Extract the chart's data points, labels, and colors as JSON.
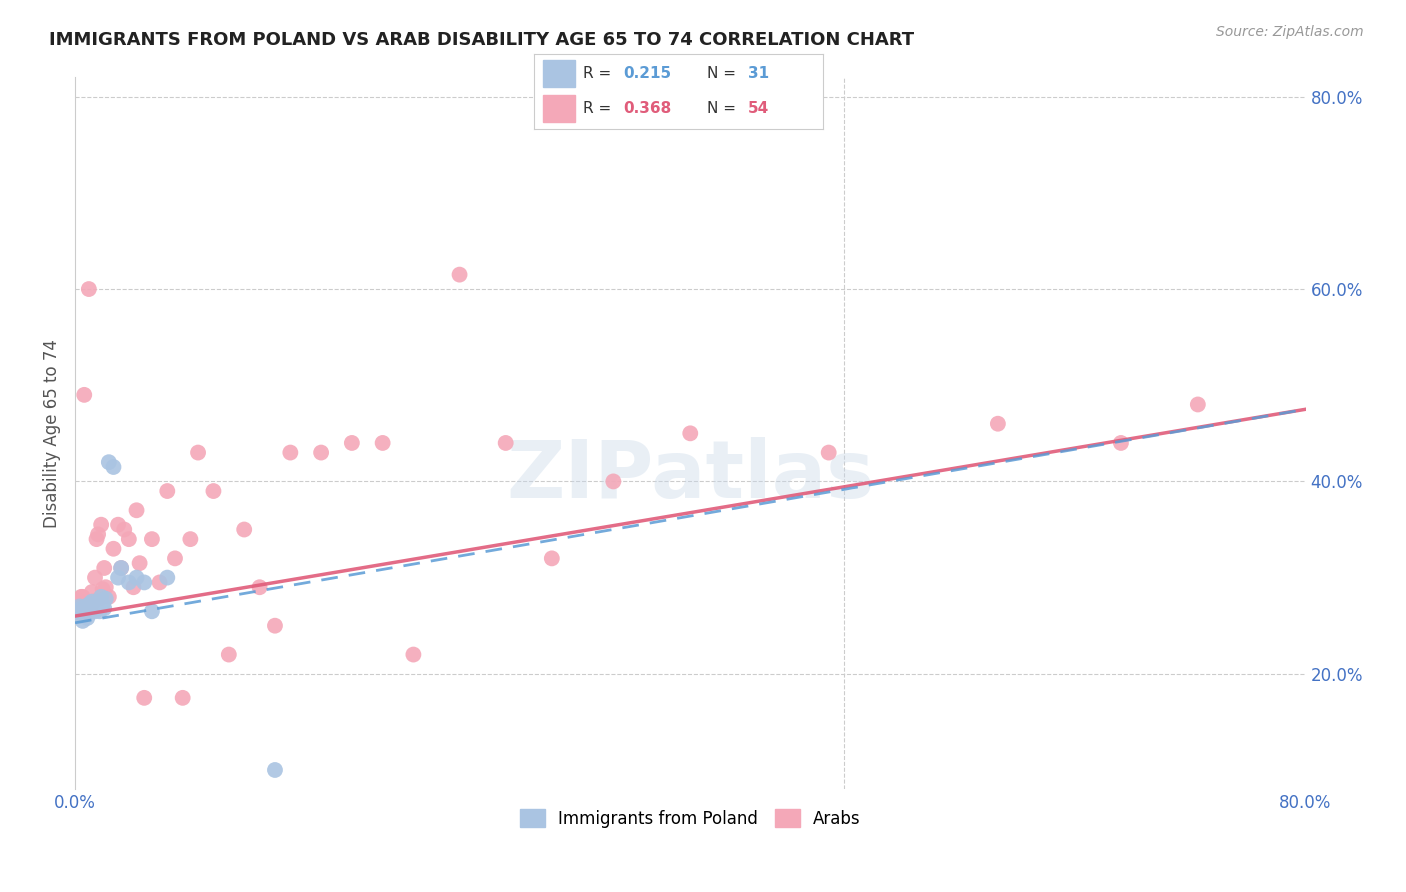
{
  "title": "IMMIGRANTS FROM POLAND VS ARAB DISABILITY AGE 65 TO 74 CORRELATION CHART",
  "source": "Source: ZipAtlas.com",
  "ylabel": "Disability Age 65 to 74",
  "xlim": [
    0.0,
    0.8
  ],
  "ylim": [
    0.08,
    0.82
  ],
  "yticks_right": [
    0.2,
    0.4,
    0.6,
    0.8
  ],
  "ytick_right_labels": [
    "20.0%",
    "40.0%",
    "60.0%",
    "80.0%"
  ],
  "legend_r1": "R = 0.215",
  "legend_n1": "N =  31",
  "legend_r2": "R = 0.368",
  "legend_n2": "N = 54",
  "legend_label1": "Immigrants from Poland",
  "legend_label2": "Arabs",
  "watermark": "ZIPatlas",
  "blue_color": "#aac4e2",
  "pink_color": "#f4a8b8",
  "blue_line_color": "#5b9bd5",
  "pink_line_color": "#e05c7a",
  "title_color": "#222222",
  "axis_color": "#4472c4",
  "poland_x": [
    0.002,
    0.003,
    0.004,
    0.005,
    0.005,
    0.006,
    0.007,
    0.007,
    0.008,
    0.009,
    0.01,
    0.011,
    0.012,
    0.013,
    0.014,
    0.015,
    0.016,
    0.017,
    0.018,
    0.019,
    0.02,
    0.022,
    0.025,
    0.028,
    0.03,
    0.035,
    0.04,
    0.045,
    0.05,
    0.06,
    0.13
  ],
  "poland_y": [
    0.265,
    0.27,
    0.268,
    0.26,
    0.255,
    0.265,
    0.27,
    0.262,
    0.258,
    0.272,
    0.265,
    0.275,
    0.272,
    0.265,
    0.268,
    0.275,
    0.265,
    0.28,
    0.272,
    0.268,
    0.278,
    0.42,
    0.415,
    0.3,
    0.31,
    0.295,
    0.3,
    0.295,
    0.265,
    0.3,
    0.1
  ],
  "arab_x": [
    0.002,
    0.004,
    0.005,
    0.006,
    0.007,
    0.008,
    0.009,
    0.01,
    0.011,
    0.012,
    0.013,
    0.014,
    0.015,
    0.016,
    0.017,
    0.018,
    0.019,
    0.02,
    0.022,
    0.025,
    0.028,
    0.03,
    0.032,
    0.035,
    0.038,
    0.04,
    0.042,
    0.045,
    0.05,
    0.055,
    0.06,
    0.065,
    0.07,
    0.075,
    0.08,
    0.09,
    0.1,
    0.11,
    0.12,
    0.13,
    0.14,
    0.16,
    0.18,
    0.2,
    0.22,
    0.25,
    0.28,
    0.31,
    0.35,
    0.4,
    0.49,
    0.6,
    0.68,
    0.73
  ],
  "arab_y": [
    0.27,
    0.28,
    0.28,
    0.49,
    0.265,
    0.27,
    0.6,
    0.268,
    0.285,
    0.275,
    0.3,
    0.34,
    0.345,
    0.278,
    0.355,
    0.288,
    0.31,
    0.29,
    0.28,
    0.33,
    0.355,
    0.31,
    0.35,
    0.34,
    0.29,
    0.37,
    0.315,
    0.175,
    0.34,
    0.295,
    0.39,
    0.32,
    0.175,
    0.34,
    0.43,
    0.39,
    0.22,
    0.35,
    0.29,
    0.25,
    0.43,
    0.43,
    0.44,
    0.44,
    0.22,
    0.615,
    0.44,
    0.32,
    0.4,
    0.45,
    0.43,
    0.46,
    0.44,
    0.48
  ]
}
